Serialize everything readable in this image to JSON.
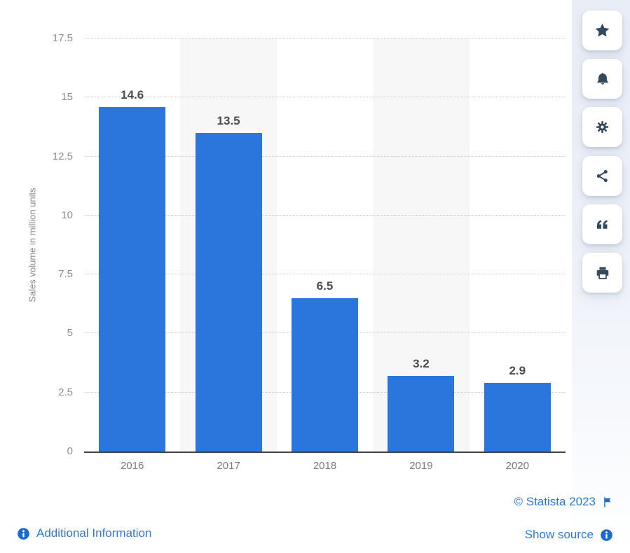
{
  "chart_data": {
    "type": "bar",
    "title": "",
    "categories": [
      "2016",
      "2017",
      "2018",
      "2019",
      "2020"
    ],
    "values": [
      14.6,
      13.5,
      6.5,
      3.2,
      2.9
    ],
    "value_labels": [
      "14.6",
      "13.5",
      "6.5",
      "3.2",
      "2.9"
    ],
    "xlabel": "",
    "ylabel": "Sales volume in million units",
    "ylim": [
      0,
      17.5
    ],
    "ytick_step": 2.5,
    "yticks": [
      "0",
      "2.5",
      "5",
      "7.5",
      "10",
      "12.5",
      "15",
      "17.5"
    ],
    "legend_position": "none",
    "grid": "horizontal-dotted",
    "bar_color": "#2b76dc",
    "alt_band_color": "#f7f7f8"
  },
  "toolbar": {
    "buttons": [
      {
        "name": "favorite",
        "icon": "star-icon"
      },
      {
        "name": "alerts",
        "icon": "bell-icon"
      },
      {
        "name": "settings",
        "icon": "gear-icon"
      },
      {
        "name": "share",
        "icon": "share-icon"
      },
      {
        "name": "cite",
        "icon": "quote-icon"
      },
      {
        "name": "print",
        "icon": "printer-icon"
      }
    ]
  },
  "footer": {
    "copyright": "© Statista 2023",
    "show_source": "Show source",
    "additional_info": "Additional Information"
  },
  "colors": {
    "bar": "#2b76dc",
    "link": "#2e79d3",
    "toolbar_icon": "#35495e",
    "info_badge": "#1b6bca",
    "axis_line": "#424242",
    "tick_label": "#8f8f8f",
    "value_label": "#4c4c4c",
    "rail_background": "#edf1f8"
  }
}
